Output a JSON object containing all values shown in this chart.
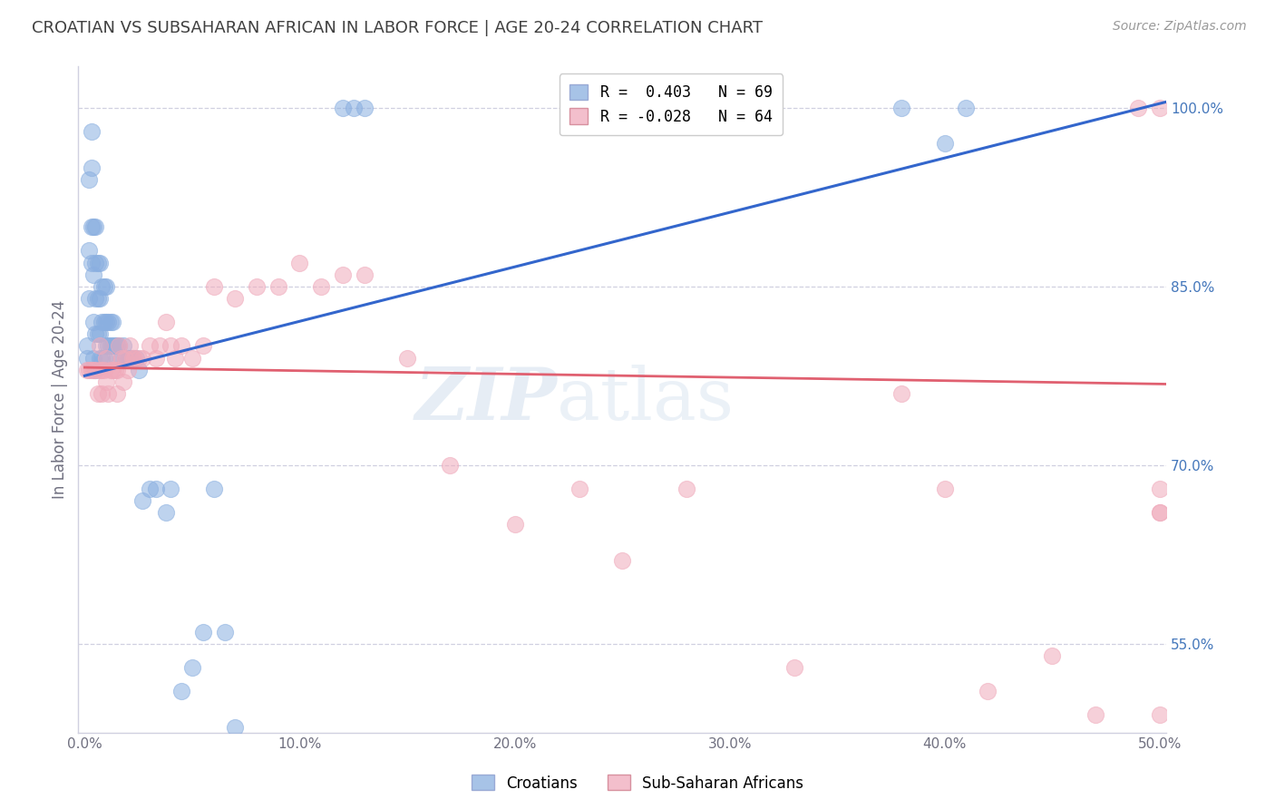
{
  "title": "CROATIAN VS SUBSAHARAN AFRICAN IN LABOR FORCE | AGE 20-24 CORRELATION CHART",
  "source": "Source: ZipAtlas.com",
  "ylabel": "In Labor Force | Age 20-24",
  "xlim": [
    -0.003,
    0.503
  ],
  "ylim": [
    0.475,
    1.035
  ],
  "xticks": [
    0.0,
    0.1,
    0.2,
    0.3,
    0.4,
    0.5
  ],
  "xticklabels": [
    "0.0%",
    "10.0%",
    "20.0%",
    "30.0%",
    "40.0%",
    "50.0%"
  ],
  "yticks_right": [
    0.55,
    0.7,
    0.85,
    1.0
  ],
  "yticklabels_right": [
    "55.0%",
    "70.0%",
    "85.0%",
    "100.0%"
  ],
  "yticks_grid": [
    0.55,
    0.7,
    0.85,
    1.0
  ],
  "blue_color": "#8AAFE0",
  "pink_color": "#F0AABB",
  "blue_line_color": "#3366CC",
  "pink_line_color": "#E06070",
  "legend_line1": "R =  0.403   N = 69",
  "legend_line2": "R = -0.028   N = 64",
  "label_croatians": "Croatians",
  "label_subsaharan": "Sub-Saharan Africans",
  "watermark_zip": "ZIP",
  "watermark_atlas": "atlas",
  "background_color": "#ffffff",
  "grid_color": "#d0d0e0",
  "title_color": "#404040",
  "right_tick_color": "#4477BB",
  "blue_scatter_x": [
    0.001,
    0.001,
    0.002,
    0.002,
    0.002,
    0.003,
    0.003,
    0.003,
    0.003,
    0.004,
    0.004,
    0.004,
    0.004,
    0.005,
    0.005,
    0.005,
    0.005,
    0.005,
    0.006,
    0.006,
    0.006,
    0.007,
    0.007,
    0.007,
    0.007,
    0.008,
    0.008,
    0.008,
    0.009,
    0.009,
    0.009,
    0.01,
    0.01,
    0.01,
    0.011,
    0.011,
    0.012,
    0.012,
    0.013,
    0.013,
    0.014,
    0.015,
    0.015,
    0.016,
    0.017,
    0.018,
    0.019,
    0.02,
    0.021,
    0.022,
    0.024,
    0.025,
    0.027,
    0.03,
    0.033,
    0.038,
    0.04,
    0.045,
    0.05,
    0.055,
    0.06,
    0.065,
    0.07,
    0.12,
    0.125,
    0.13,
    0.38,
    0.4,
    0.41
  ],
  "blue_scatter_y": [
    0.79,
    0.8,
    0.84,
    0.88,
    0.94,
    0.87,
    0.9,
    0.95,
    0.98,
    0.79,
    0.82,
    0.86,
    0.9,
    0.78,
    0.81,
    0.84,
    0.87,
    0.9,
    0.81,
    0.84,
    0.87,
    0.79,
    0.81,
    0.84,
    0.87,
    0.79,
    0.82,
    0.85,
    0.79,
    0.82,
    0.85,
    0.8,
    0.82,
    0.85,
    0.8,
    0.82,
    0.8,
    0.82,
    0.8,
    0.82,
    0.8,
    0.79,
    0.8,
    0.8,
    0.79,
    0.8,
    0.79,
    0.79,
    0.79,
    0.79,
    0.79,
    0.78,
    0.67,
    0.68,
    0.68,
    0.66,
    0.68,
    0.51,
    0.53,
    0.56,
    0.68,
    0.56,
    0.48,
    1.0,
    1.0,
    1.0,
    1.0,
    0.97,
    1.0
  ],
  "pink_scatter_x": [
    0.001,
    0.002,
    0.003,
    0.004,
    0.005,
    0.006,
    0.007,
    0.007,
    0.008,
    0.008,
    0.009,
    0.01,
    0.01,
    0.011,
    0.012,
    0.013,
    0.014,
    0.015,
    0.015,
    0.016,
    0.017,
    0.018,
    0.019,
    0.02,
    0.021,
    0.022,
    0.023,
    0.025,
    0.027,
    0.03,
    0.033,
    0.035,
    0.038,
    0.04,
    0.042,
    0.045,
    0.05,
    0.055,
    0.06,
    0.07,
    0.08,
    0.09,
    0.1,
    0.11,
    0.12,
    0.13,
    0.15,
    0.17,
    0.2,
    0.23,
    0.25,
    0.28,
    0.33,
    0.38,
    0.4,
    0.42,
    0.45,
    0.47,
    0.49,
    0.5,
    0.5,
    0.5,
    0.5,
    0.5
  ],
  "pink_scatter_y": [
    0.78,
    0.78,
    0.78,
    0.78,
    0.78,
    0.76,
    0.78,
    0.8,
    0.76,
    0.78,
    0.78,
    0.77,
    0.79,
    0.76,
    0.78,
    0.78,
    0.78,
    0.76,
    0.78,
    0.8,
    0.79,
    0.77,
    0.79,
    0.78,
    0.8,
    0.79,
    0.79,
    0.79,
    0.79,
    0.8,
    0.79,
    0.8,
    0.82,
    0.8,
    0.79,
    0.8,
    0.79,
    0.8,
    0.85,
    0.84,
    0.85,
    0.85,
    0.87,
    0.85,
    0.86,
    0.86,
    0.79,
    0.7,
    0.65,
    0.68,
    0.62,
    0.68,
    0.53,
    0.76,
    0.68,
    0.51,
    0.54,
    0.49,
    1.0,
    1.0,
    0.68,
    0.66,
    0.49,
    0.66
  ],
  "blue_trend_x0": 0.0,
  "blue_trend_x1": 0.503,
  "blue_trend_y0": 0.775,
  "blue_trend_y1": 1.005,
  "pink_trend_x0": 0.0,
  "pink_trend_x1": 0.503,
  "pink_trend_y0": 0.782,
  "pink_trend_y1": 0.768
}
